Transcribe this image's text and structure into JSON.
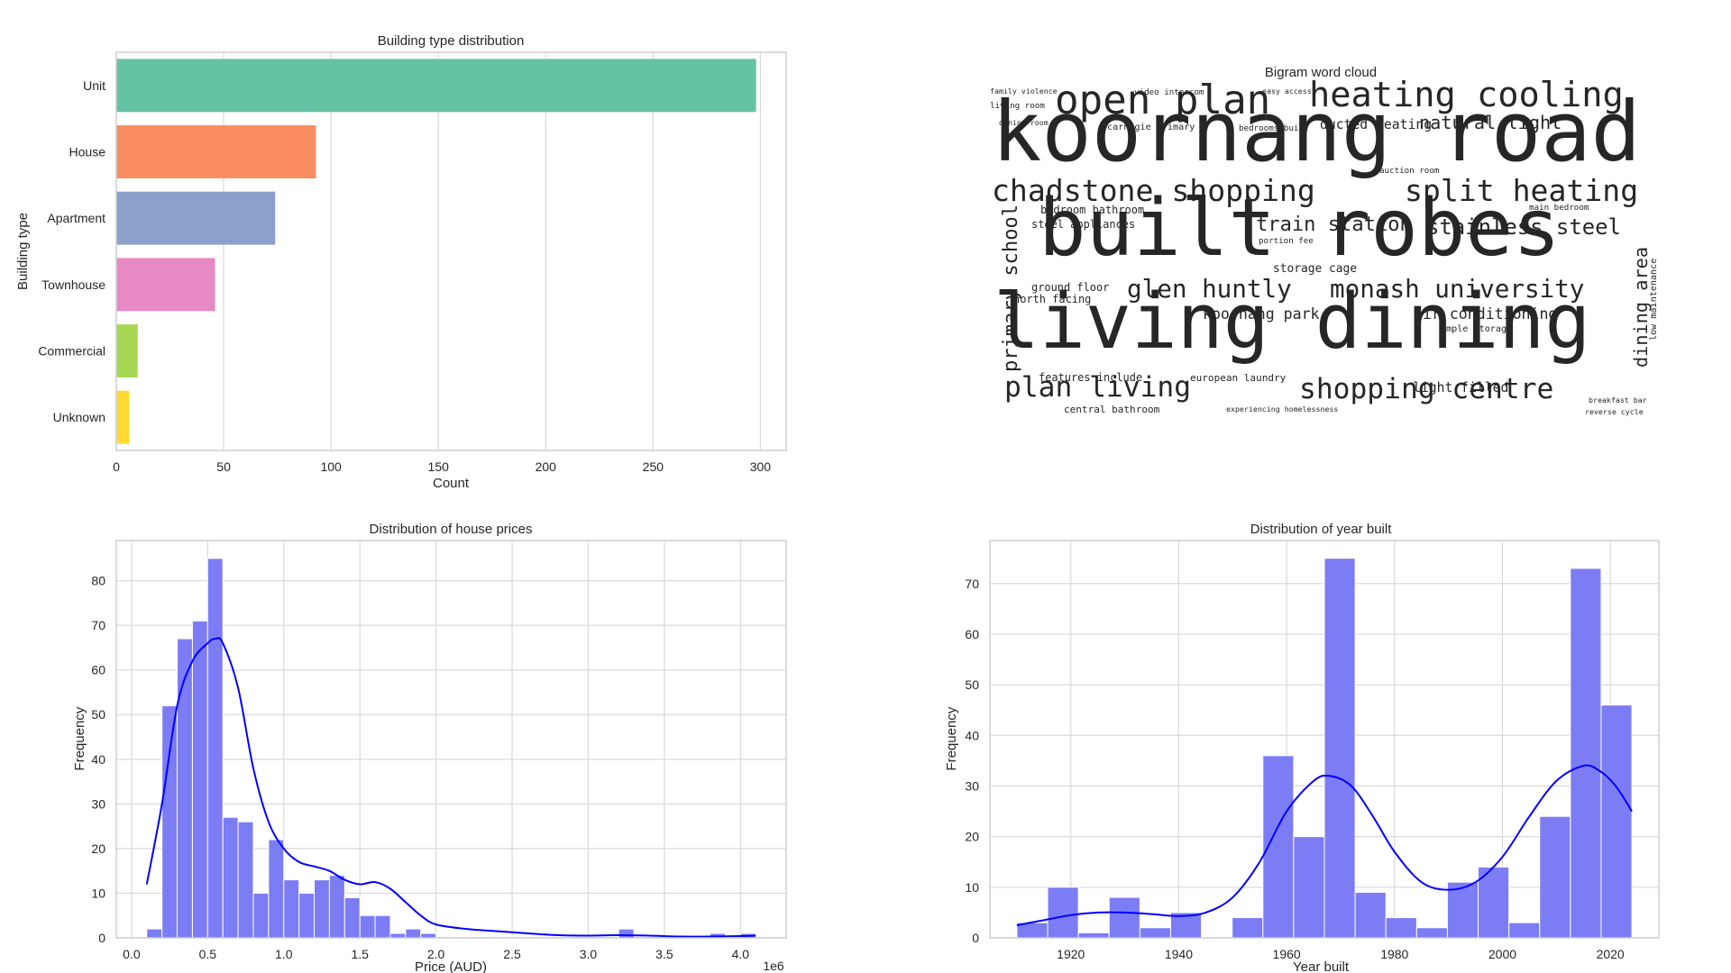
{
  "chart_data": [
    {
      "type": "bar",
      "orientation": "horizontal",
      "title": "Building type distribution",
      "xlabel": "Count",
      "ylabel": "Building type",
      "categories": [
        "Unit",
        "House",
        "Apartment",
        "Townhouse",
        "Commercial",
        "Unknown"
      ],
      "values": [
        298,
        93,
        74,
        46,
        10,
        6
      ],
      "colors": [
        "#66c2a5",
        "#fc8d62",
        "#8da0cb",
        "#e78ac3",
        "#a6d854",
        "#ffd92f"
      ],
      "xlim": [
        0,
        312
      ],
      "xticks": [
        0,
        50,
        100,
        150,
        200,
        250,
        300
      ],
      "grid": true
    },
    {
      "type": "wordcloud",
      "title": "Bigram word cloud",
      "words": [
        {
          "text": "koornang road",
          "weight": 100,
          "color": "#2c728e"
        },
        {
          "text": "built robes",
          "weight": 95,
          "color": "#46256f"
        },
        {
          "text": "living dining",
          "weight": 92,
          "color": "#3b3a7e"
        },
        {
          "text": "open plan",
          "weight": 48,
          "color": "#2d6f8e"
        },
        {
          "text": "heating cooling",
          "weight": 42,
          "color": "#2f6b8e"
        },
        {
          "text": "chadstone shopping",
          "weight": 36,
          "color": "#24868e"
        },
        {
          "text": "split heating",
          "weight": 36,
          "color": "#5ec962"
        },
        {
          "text": "plan living",
          "weight": 34,
          "color": "#482878"
        },
        {
          "text": "shopping centre",
          "weight": 34,
          "color": "#b5de2b"
        },
        {
          "text": "glen huntly",
          "weight": 30,
          "color": "#6ece58"
        },
        {
          "text": "monash university",
          "weight": 30,
          "color": "#21918c"
        },
        {
          "text": "stainless steel",
          "weight": 26,
          "color": "#1fa088"
        },
        {
          "text": "train station",
          "weight": 24,
          "color": "#355f8d"
        },
        {
          "text": "natural light",
          "weight": 22,
          "color": "#2fb47c"
        },
        {
          "text": "primary school",
          "weight": 24,
          "color": "#1f9e89"
        },
        {
          "text": "dining area",
          "weight": 22,
          "color": "#440154"
        },
        {
          "text": "air conditioning",
          "weight": 18,
          "color": "#3e4a89"
        },
        {
          "text": "koornang park",
          "weight": 18,
          "color": "#31688e"
        },
        {
          "text": "ducted heating",
          "weight": 16,
          "color": "#26828e"
        },
        {
          "text": "light filled",
          "weight": 16,
          "color": "#35b779"
        },
        {
          "text": "storage cage",
          "weight": 14,
          "color": "#20a386"
        },
        {
          "text": "bedroom bathroom",
          "weight": 13,
          "color": "#b8de29"
        },
        {
          "text": "steel appliances",
          "weight": 13,
          "color": "#95d840"
        },
        {
          "text": "ground floor",
          "weight": 13,
          "color": "#c0df25"
        },
        {
          "text": "north facing",
          "weight": 13,
          "color": "#3b528b"
        },
        {
          "text": "features include",
          "weight": 13,
          "color": "#404688"
        },
        {
          "text": "european laundry",
          "weight": 12,
          "color": "#287c8e"
        },
        {
          "text": "central bathroom",
          "weight": 12,
          "color": "#472d7b"
        },
        {
          "text": "carnegie primary",
          "weight": 11,
          "color": "#22a884"
        },
        {
          "text": "ample storage",
          "weight": 11,
          "color": "#2a788e"
        },
        {
          "text": "portion fee",
          "weight": 10,
          "color": "#414487"
        },
        {
          "text": "low maintenance",
          "weight": 11,
          "color": "#31688e"
        },
        {
          "text": "living room",
          "weight": 10,
          "color": "#2c728e"
        },
        {
          "text": "dining room",
          "weight": 9,
          "color": "#7ad151"
        },
        {
          "text": "family violence",
          "weight": 9,
          "color": "#3e4989"
        },
        {
          "text": "video intercom",
          "weight": 10,
          "color": "#3b528b"
        },
        {
          "text": "easy access",
          "weight": 9,
          "color": "#5ec962"
        },
        {
          "text": "bedrooms built",
          "weight": 10,
          "color": "#443983"
        },
        {
          "text": "auction room",
          "weight": 10,
          "color": "#2a788e"
        },
        {
          "text": "main bedroom",
          "weight": 10,
          "color": "#3b528b"
        },
        {
          "text": "experiencing homelessness",
          "weight": 9,
          "color": "#2c728e"
        },
        {
          "text": "breakfast bar",
          "weight": 9,
          "color": "#3e4a89"
        },
        {
          "text": "reverse cycle",
          "weight": 9,
          "color": "#25848e"
        }
      ]
    },
    {
      "type": "histogram",
      "title": "Distribution of house prices",
      "xlabel": "Price (AUD)",
      "ylabel": "Frequency",
      "x_offset_label": "1e6",
      "x_units": "millions AUD",
      "bin_edges": [
        0.1,
        0.2,
        0.3,
        0.4,
        0.5,
        0.6,
        0.7,
        0.8,
        0.9,
        1.0,
        1.1,
        1.2,
        1.3,
        1.4,
        1.5,
        1.6,
        1.7,
        1.8,
        1.9,
        2.0,
        2.1,
        2.2,
        2.3,
        2.4,
        2.5,
        2.6,
        2.7,
        2.8,
        2.9,
        3.0,
        3.1,
        3.2,
        3.3,
        3.4,
        3.5,
        3.6,
        3.7,
        3.8,
        3.9,
        4.0,
        4.1
      ],
      "counts": [
        2,
        52,
        67,
        71,
        85,
        27,
        26,
        10,
        22,
        13,
        10,
        13,
        14,
        9,
        5,
        5,
        1,
        2,
        1,
        0,
        0,
        0,
        0,
        0,
        0,
        0,
        0,
        0,
        0,
        0,
        0,
        2,
        0,
        0,
        0,
        0,
        0,
        1,
        0,
        1
      ],
      "kde": {
        "x": [
          0.1,
          0.2,
          0.3,
          0.4,
          0.5,
          0.55,
          0.6,
          0.7,
          0.8,
          0.9,
          1.0,
          1.1,
          1.2,
          1.3,
          1.4,
          1.5,
          1.6,
          1.7,
          1.8,
          1.9,
          2.0,
          2.2,
          2.4,
          2.6,
          2.8,
          3.0,
          3.2,
          3.4,
          3.6,
          3.8,
          4.0,
          4.1
        ],
        "y": [
          12,
          30,
          52,
          62,
          66,
          67,
          66,
          56,
          38,
          26,
          20,
          17,
          16,
          15,
          13,
          12,
          12.5,
          11,
          8,
          5,
          3,
          2,
          1.5,
          1,
          0.6,
          0.5,
          0.6,
          0.5,
          0.3,
          0.3,
          0.4,
          0.5
        ]
      },
      "bar_color": "#7c7cf5",
      "kde_color": "#0000ff",
      "xlim": [
        -0.1,
        4.3
      ],
      "ylim": [
        0,
        89
      ],
      "xticks": [
        "0.0",
        "0.5",
        "1.0",
        "1.5",
        "2.0",
        "2.5",
        "3.0",
        "3.5",
        "4.0"
      ],
      "yticks": [
        0,
        10,
        20,
        30,
        40,
        50,
        60,
        70,
        80
      ],
      "grid": true
    },
    {
      "type": "histogram",
      "title": "Distribution of year built",
      "xlabel": "Year built",
      "ylabel": "Frequency",
      "bin_edges": [
        1910,
        1915.7,
        1921.4,
        1927.1,
        1932.8,
        1938.5,
        1944.2,
        1949.9,
        1955.6,
        1961.3,
        1967,
        1972.7,
        1978.4,
        1984.1,
        1989.8,
        1995.5,
        2001.2,
        2006.9,
        2012.6,
        2018.3,
        2024
      ],
      "counts": [
        3,
        10,
        1,
        8,
        2,
        5,
        0,
        4,
        36,
        20,
        75,
        9,
        4,
        2,
        11,
        14,
        3,
        24,
        73,
        46
      ],
      "kde": {
        "x": [
          1910,
          1915,
          1920,
          1925,
          1930,
          1935,
          1940,
          1945,
          1950,
          1955,
          1960,
          1965,
          1968,
          1972,
          1976,
          1980,
          1985,
          1990,
          1995,
          2000,
          2005,
          2010,
          2015,
          2018,
          2021,
          2024
        ],
        "y": [
          2.5,
          3.5,
          4.5,
          5,
          5,
          4.7,
          4.3,
          5,
          8,
          15,
          25,
          31,
          32,
          30,
          24,
          17,
          11,
          9.5,
          11,
          16,
          24,
          31,
          34,
          33,
          30,
          25
        ]
      },
      "bar_color": "#7c7cf5",
      "kde_color": "#0000ff",
      "xlim": [
        1905,
        2029
      ],
      "ylim": [
        0,
        78.5
      ],
      "xticks": [
        1920,
        1940,
        1960,
        1980,
        2000,
        2020
      ],
      "yticks": [
        0,
        10,
        20,
        30,
        40,
        50,
        60,
        70
      ],
      "grid": true
    }
  ]
}
